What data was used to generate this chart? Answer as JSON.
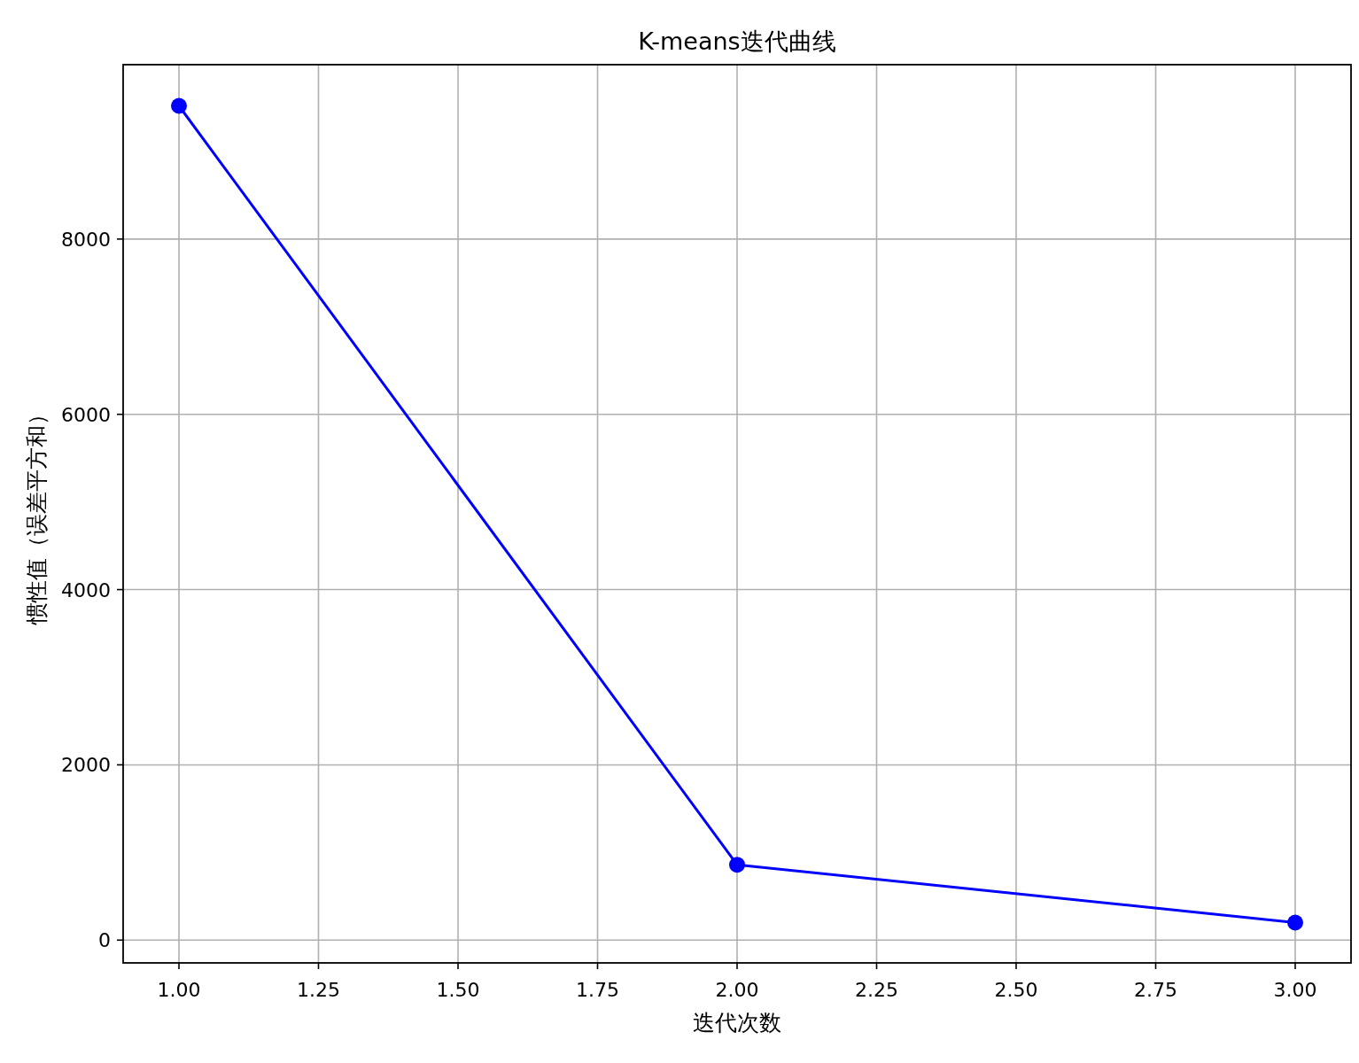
{
  "chart_data": {
    "type": "line",
    "title": "K-means迭代曲线",
    "xlabel": "迭代次数",
    "ylabel": "惯性值（误差平方和）",
    "x": [
      1,
      2,
      3
    ],
    "series": [
      {
        "color": "#0000ff",
        "values": [
          9520,
          860,
          200
        ]
      }
    ],
    "xlim": [
      0.9,
      3.1
    ],
    "ylim": [
      -260,
      9990
    ],
    "xticks": [
      {
        "value": 1,
        "label": "1.00"
      },
      {
        "value": 1.25,
        "label": "1.25"
      },
      {
        "value": 1.5,
        "label": "1.50"
      },
      {
        "value": 1.75,
        "label": "1.75"
      },
      {
        "value": 2,
        "label": "2.00"
      },
      {
        "value": 2.25,
        "label": "2.25"
      },
      {
        "value": 2.5,
        "label": "2.50"
      },
      {
        "value": 2.75,
        "label": "2.75"
      },
      {
        "value": 3,
        "label": "3.00"
      }
    ],
    "yticks": [
      0,
      2000,
      4000,
      6000,
      8000
    ],
    "grid": true,
    "marker": "circle",
    "line_style": "solid"
  }
}
